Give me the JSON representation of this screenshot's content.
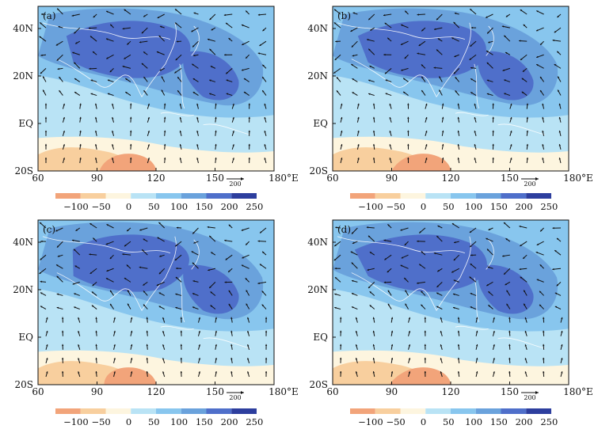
{
  "figure": {
    "panels": [
      {
        "label": "(a)"
      },
      {
        "label": "(b)"
      },
      {
        "label": "(c)"
      },
      {
        "label": "(d)"
      }
    ],
    "lat_ticks": [
      "40N",
      "20N",
      "EQ",
      "20S"
    ],
    "lon_ticks": [
      "60",
      "90",
      "120",
      "150",
      "180°E"
    ],
    "reference_vector": "200",
    "colorbar": {
      "labels": [
        "−100",
        "−50",
        "0",
        "50",
        "100",
        "150",
        "200",
        "250"
      ],
      "colors": [
        "#f2a47a",
        "#f8cf9e",
        "#fdf5df",
        "#b9e3f5",
        "#88c6ee",
        "#6aa2dc",
        "#4f6fca",
        "#2d3e9e"
      ]
    }
  },
  "chart_data": {
    "type": "heatmap",
    "field": "contour-shaded map with overlaid wind-vector arrows",
    "lat_range": [
      "20S",
      "50N"
    ],
    "lon_range": [
      "60",
      "180°E"
    ],
    "shading_levels": [
      -100,
      -50,
      0,
      50,
      100,
      150,
      200,
      250
    ],
    "colors": {
      "negative_strong": "#f2a47a",
      "negative_weak": "#f8cf9e",
      "near_zero": "#fdf5df",
      "level_50": "#b9e3f5",
      "level_100": "#88c6ee",
      "level_150": "#6aa2dc",
      "level_200": "#4f6fca",
      "level_250": "#2d3e9e"
    }
  }
}
